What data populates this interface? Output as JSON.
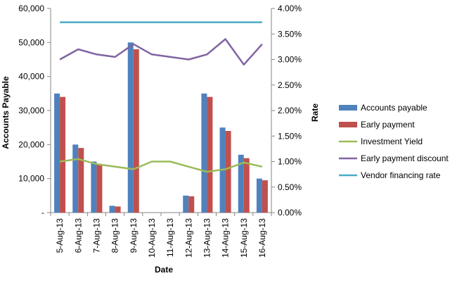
{
  "chart_data": {
    "type": "bar",
    "title": "",
    "xlabel": "Date",
    "ylabel": "Accounts Payable",
    "y2label": "Rate",
    "ylim": [
      0,
      60000
    ],
    "y2lim": [
      0,
      0.04
    ],
    "yticks": [
      0,
      10000,
      20000,
      30000,
      40000,
      50000,
      60000
    ],
    "ytick_labels": [
      "-",
      "10,000",
      "20,000",
      "30,000",
      "40,000",
      "50,000",
      "60,000"
    ],
    "y2ticks": [
      0,
      0.005,
      0.01,
      0.015,
      0.02,
      0.025,
      0.03,
      0.035,
      0.04
    ],
    "y2tick_labels": [
      "0.00%",
      "0.50%",
      "1.00%",
      "1.50%",
      "2.00%",
      "2.50%",
      "3.00%",
      "3.50%",
      "4.00%"
    ],
    "categories": [
      "5-Aug-13",
      "6-Aug-13",
      "7-Aug-13",
      "8-Aug-13",
      "9-Aug-13",
      "10-Aug-13",
      "11-Aug-13",
      "12-Aug-13",
      "13-Aug-13",
      "14-Aug-13",
      "15-Aug-13",
      "16-Aug-13"
    ],
    "legend_position": "right",
    "grid": false,
    "series": [
      {
        "name": "Accounts payable",
        "kind": "bar",
        "axis": "left",
        "color": "#4F81BD",
        "values": [
          35000,
          20000,
          15000,
          2000,
          50000,
          0,
          0,
          5000,
          35000,
          25000,
          17000,
          10000
        ]
      },
      {
        "name": "Early payment",
        "kind": "bar",
        "axis": "left",
        "color": "#C0504D",
        "values": [
          34000,
          19000,
          14000,
          1800,
          48000,
          0,
          0,
          4800,
          34000,
          24000,
          16000,
          9500
        ]
      },
      {
        "name": "Investment Yield",
        "kind": "line",
        "axis": "right",
        "color": "#9BBB59",
        "values": [
          0.01,
          0.0105,
          0.0095,
          0.009,
          0.0085,
          0.01,
          0.01,
          0.009,
          0.008,
          0.0085,
          0.0098,
          0.009
        ]
      },
      {
        "name": "Early payment discount",
        "kind": "line",
        "axis": "right",
        "color": "#8064A2",
        "values": [
          0.03,
          0.032,
          0.031,
          0.0305,
          0.033,
          0.031,
          0.0305,
          0.03,
          0.031,
          0.034,
          0.029,
          0.033
        ]
      },
      {
        "name": "Vendor financing rate",
        "kind": "line",
        "axis": "right",
        "color": "#4BACC6",
        "values": [
          0.0373,
          0.0373,
          0.0373,
          0.0373,
          0.0373,
          0.0373,
          0.0373,
          0.0373,
          0.0373,
          0.0373,
          0.0373,
          0.0373
        ]
      }
    ]
  }
}
